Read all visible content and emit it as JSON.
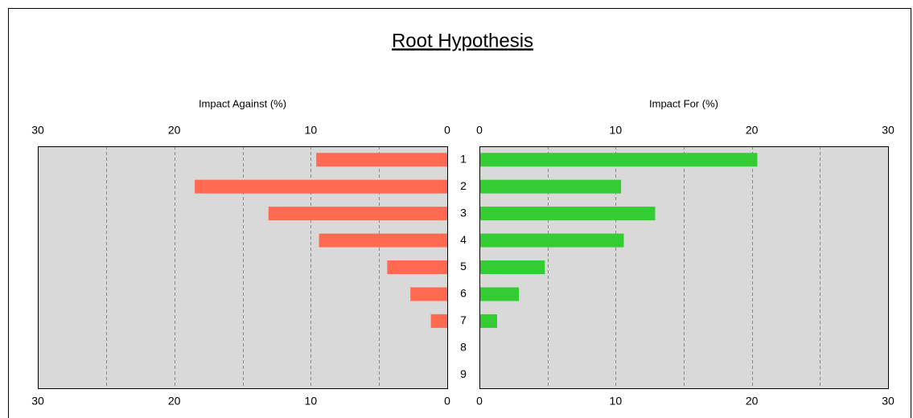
{
  "chart_data": {
    "type": "butterfly",
    "title": "Root Hypothesis",
    "categories": [
      "1",
      "2",
      "3",
      "4",
      "5",
      "6",
      "7",
      "8",
      "9"
    ],
    "grid_ticks": [
      5,
      10,
      15,
      20,
      25
    ],
    "series": [
      {
        "name": "Impact Against (%)",
        "side": "left",
        "color": "#ff6a50",
        "values": [
          9.6,
          18.5,
          13.1,
          9.4,
          4.4,
          2.7,
          1.2,
          0,
          0
        ],
        "xlim": [
          0,
          30
        ],
        "xticks": [
          0,
          10,
          20,
          30
        ]
      },
      {
        "name": "Impact For (%)",
        "side": "right",
        "color": "#33cc33",
        "values": [
          20.4,
          10.4,
          12.9,
          10.6,
          4.8,
          2.9,
          1.3,
          0,
          0
        ],
        "xlim": [
          0,
          30
        ],
        "xticks": [
          0,
          10,
          20,
          30
        ]
      }
    ]
  }
}
